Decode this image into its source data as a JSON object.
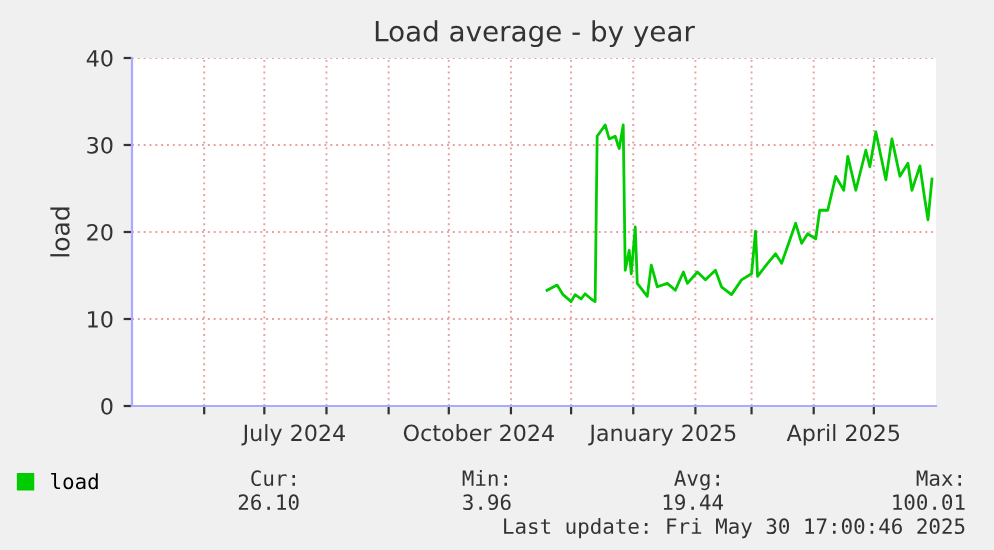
{
  "chart_data": {
    "type": "line",
    "title": "Load average - by year",
    "ylabel": "load",
    "x": [
      "2024-11-19",
      "2024-11-24",
      "2024-11-27",
      "2024-12-01",
      "2024-12-03",
      "2024-12-06",
      "2024-12-08",
      "2024-12-11",
      "2024-12-13",
      "2024-12-14",
      "2024-12-18",
      "2024-12-20",
      "2024-12-23",
      "2024-12-25",
      "2024-12-27",
      "2024-12-28",
      "2024-12-30",
      "2024-12-31",
      "2025-01-02",
      "2025-01-03",
      "2025-01-08",
      "2025-01-10",
      "2025-01-13",
      "2025-01-18",
      "2025-01-22",
      "2025-01-26",
      "2025-01-28",
      "2025-02-02",
      "2025-02-06",
      "2025-02-11",
      "2025-02-14",
      "2025-02-19",
      "2025-02-24",
      "2025-03-01",
      "2025-03-03",
      "2025-03-04",
      "2025-03-09",
      "2025-03-13",
      "2025-03-16",
      "2025-03-23",
      "2025-03-26",
      "2025-03-29",
      "2025-04-02",
      "2025-04-04",
      "2025-04-08",
      "2025-04-12",
      "2025-04-16",
      "2025-04-18",
      "2025-04-22",
      "2025-04-27",
      "2025-04-29",
      "2025-05-02",
      "2025-05-07",
      "2025-05-10",
      "2025-05-14",
      "2025-05-18",
      "2025-05-20",
      "2025-05-24",
      "2025-05-26",
      "2025-05-28",
      "2025-05-30"
    ],
    "series": [
      {
        "name": "load",
        "color": "#00cc00",
        "values": [
          13.3,
          13.9,
          12.8,
          12.0,
          12.8,
          12.3,
          12.9,
          12.3,
          12.0,
          31.0,
          32.3,
          30.7,
          31.0,
          29.6,
          32.3,
          15.6,
          17.9,
          15.2,
          20.6,
          14.1,
          12.6,
          16.2,
          13.7,
          14.1,
          13.3,
          15.4,
          14.1,
          15.4,
          14.5,
          15.6,
          13.7,
          12.8,
          14.5,
          15.2,
          20.1,
          14.9,
          16.4,
          17.5,
          16.4,
          21.0,
          18.7,
          19.8,
          19.2,
          22.5,
          22.5,
          26.4,
          24.8,
          28.7,
          24.8,
          29.4,
          27.5,
          31.5,
          26.0,
          30.7,
          26.4,
          27.9,
          24.8,
          27.6,
          24.4,
          21.4,
          26.1
        ]
      }
    ],
    "xlim": [
      "2024-04-26",
      "2025-06-01"
    ],
    "xticks": [
      {
        "value": "2024-06-01",
        "label": null
      },
      {
        "value": "2024-07-01",
        "label": null
      },
      {
        "value": "2024-07-16",
        "label": "July 2024"
      },
      {
        "value": "2024-08-01",
        "label": null
      },
      {
        "value": "2024-09-01",
        "label": null
      },
      {
        "value": "2024-10-01",
        "label": null
      },
      {
        "value": "2024-10-16",
        "label": "October 2024"
      },
      {
        "value": "2024-11-01",
        "label": null
      },
      {
        "value": "2024-12-01",
        "label": null
      },
      {
        "value": "2025-01-01",
        "label": null
      },
      {
        "value": "2025-01-16",
        "label": "January 2025"
      },
      {
        "value": "2025-02-01",
        "label": null
      },
      {
        "value": "2025-03-01",
        "label": null
      },
      {
        "value": "2025-04-01",
        "label": null
      },
      {
        "value": "2025-04-16",
        "label": "April 2025"
      },
      {
        "value": "2025-05-01",
        "label": null
      }
    ],
    "ylim": [
      0,
      40
    ],
    "yticks": [
      0,
      10,
      20,
      30,
      40
    ],
    "grid": true,
    "legend": "bottom left",
    "marker": "none",
    "line_style": "solid",
    "annotations": [
      "Cur:",
      "Min:",
      "Avg:",
      "Max:",
      "26.10",
      "3.96",
      "19.44",
      "100.01",
      "Last update: Fri May 30 17:00:46 2025"
    ]
  }
}
